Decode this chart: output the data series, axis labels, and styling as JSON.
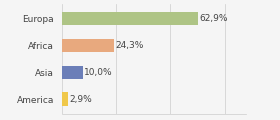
{
  "categories": [
    "Europa",
    "Africa",
    "Asia",
    "America"
  ],
  "values": [
    62.9,
    24.3,
    10.0,
    2.9
  ],
  "bar_colors": [
    "#aec485",
    "#e8a97e",
    "#6b7eb8",
    "#f0c84a"
  ],
  "labels": [
    "62,9%",
    "24,3%",
    "10,0%",
    "2,9%"
  ],
  "xlim": [
    0,
    85
  ],
  "background_color": "#f5f5f5",
  "bar_height": 0.5,
  "label_fontsize": 6.5,
  "tick_fontsize": 6.5,
  "figsize": [
    2.8,
    1.2
  ],
  "dpi": 100
}
